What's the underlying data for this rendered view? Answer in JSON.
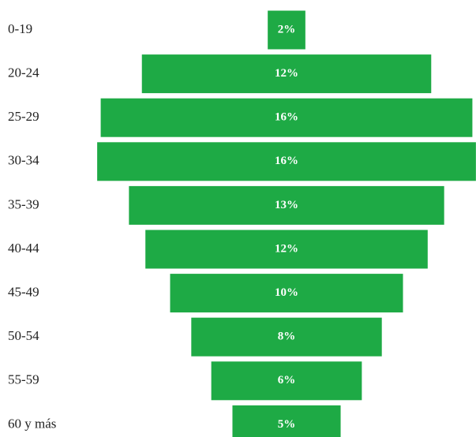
{
  "chart_data": {
    "type": "funnel",
    "categories": [
      "0-19",
      "20-24",
      "25-29",
      "30-34",
      "35-39",
      "40-44",
      "45-49",
      "50-54",
      "55-59",
      "60 y más"
    ],
    "values": [
      1.6,
      12.3,
      15.8,
      16.1,
      13.4,
      12.0,
      9.9,
      8.1,
      6.4,
      4.6
    ],
    "value_labels": [
      "2%",
      "12%",
      "16%",
      "16%",
      "13%",
      "12%",
      "10%",
      "8%",
      "6%",
      "5%"
    ],
    "color": "#1eaa45"
  }
}
